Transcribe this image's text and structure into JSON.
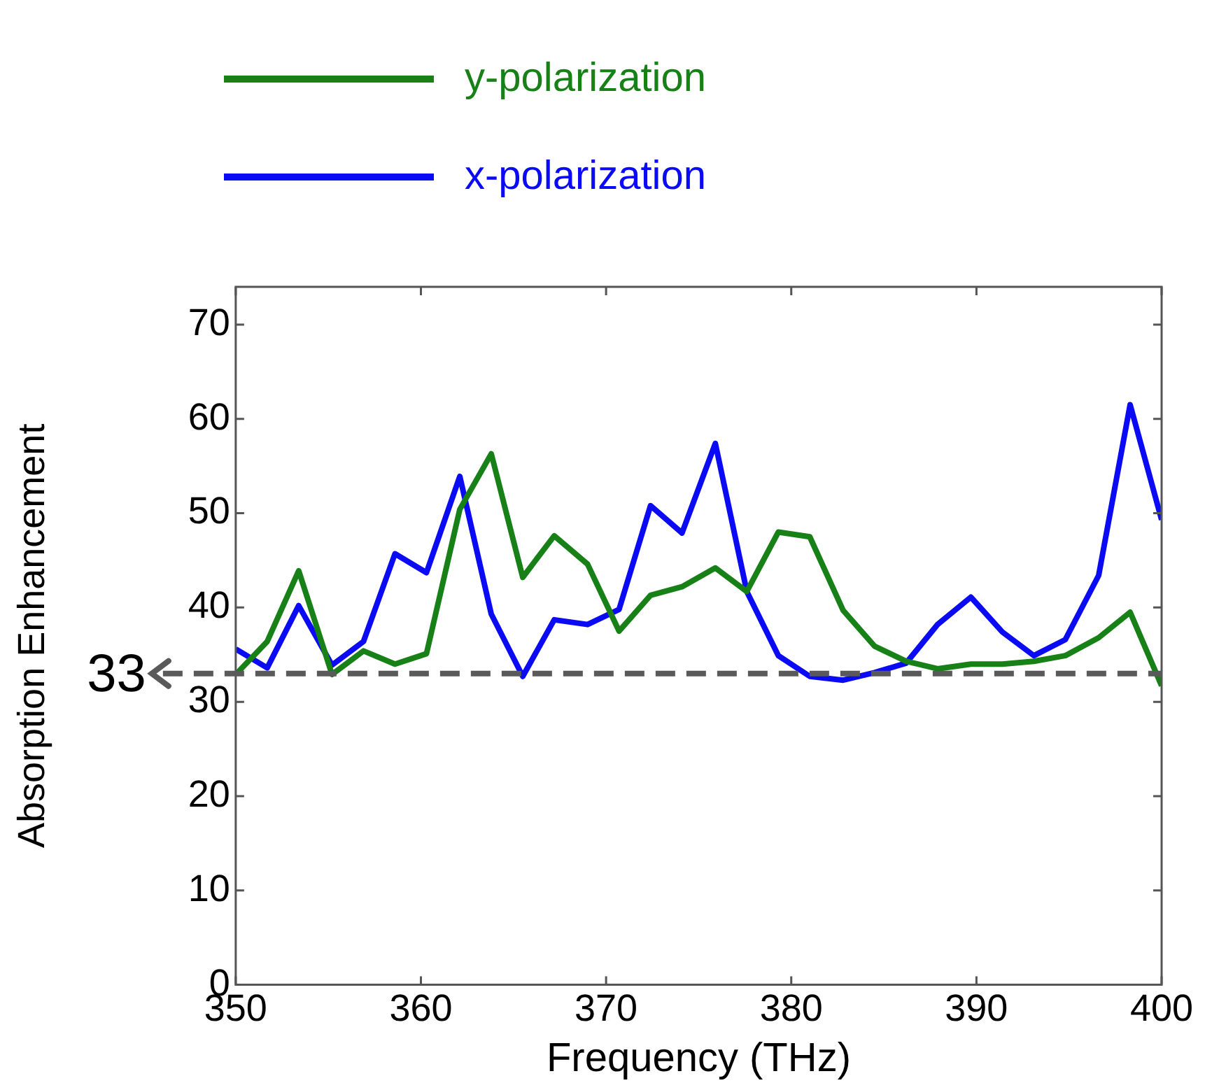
{
  "chart_data": {
    "type": "line",
    "xlabel": "Frequency (THz)",
    "ylabel": "Absorption Enhancement",
    "x": [
      350,
      351.7,
      353.4,
      355.2,
      356.9,
      358.6,
      360.3,
      362.1,
      363.8,
      365.5,
      367.2,
      369.0,
      370.7,
      372.4,
      374.1,
      375.9,
      377.6,
      379.3,
      381.0,
      382.8,
      384.5,
      386.2,
      387.9,
      389.7,
      391.4,
      393.1,
      394.8,
      396.6,
      398.3,
      400
    ],
    "series": [
      {
        "name": "y-polarization",
        "color": "#178117",
        "values": [
          32.9,
          36.4,
          43.9,
          32.9,
          35.4,
          34.0,
          35.1,
          50.4,
          56.3,
          43.2,
          47.6,
          44.6,
          37.5,
          41.3,
          42.2,
          44.2,
          41.7,
          48.0,
          47.5,
          39.7,
          35.9,
          34.3,
          33.5,
          34.0,
          34.0,
          34.3,
          34.9,
          36.8,
          39.5,
          31.7
        ]
      },
      {
        "name": "x-polarization",
        "color": "#0a0af5",
        "values": [
          35.6,
          33.6,
          40.2,
          33.9,
          36.4,
          45.7,
          43.7,
          53.9,
          39.3,
          32.7,
          38.7,
          38.2,
          39.8,
          50.8,
          47.9,
          57.4,
          41.7,
          34.9,
          32.7,
          32.3,
          33.1,
          34.1,
          38.2,
          41.1,
          37.4,
          34.9,
          36.6,
          43.4,
          61.5,
          49.3
        ]
      }
    ],
    "xlim": [
      350,
      400
    ],
    "xticks": [
      350,
      360,
      370,
      380,
      390,
      400
    ],
    "ylim": [
      0,
      74
    ],
    "yticks": [
      0,
      10,
      20,
      30,
      40,
      50,
      60,
      70
    ],
    "ref_lines": [
      {
        "axis": "y",
        "value": 33,
        "label": "33",
        "color": "#5a5a5a",
        "line_style": "dashed"
      }
    ],
    "grid": false,
    "legend": "top left",
    "marker": "none",
    "line_style": "solid"
  }
}
